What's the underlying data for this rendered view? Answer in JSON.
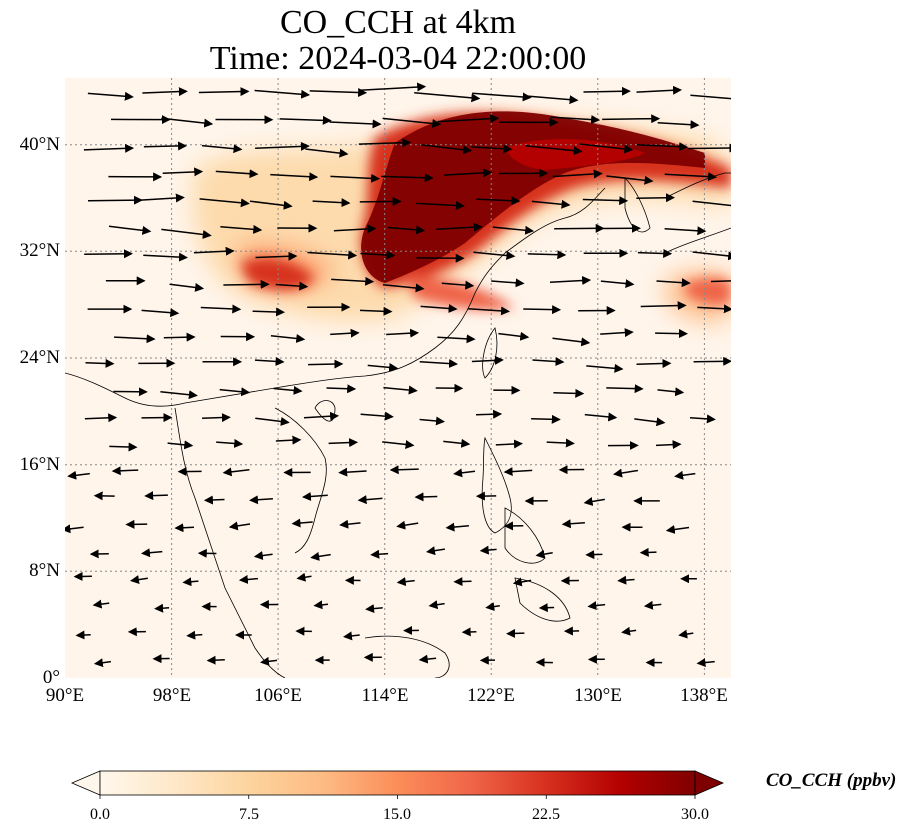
{
  "title": {
    "line1": "CO_CCH at 4km",
    "line2": "Time: 2024-03-04 22:00:00"
  },
  "map": {
    "type": "filled-contour-with-wind-vectors",
    "extent_lon": [
      90,
      140
    ],
    "extent_lat": [
      0,
      45
    ],
    "grid": "dotted",
    "lon_ticks": [
      "90°E",
      "98°E",
      "106°E",
      "114°E",
      "122°E",
      "130°E",
      "138°E"
    ],
    "lat_ticks": [
      "0°",
      "8°N",
      "16°N",
      "24°N",
      "32°N",
      "40°N"
    ],
    "background_color": "#fff5eb",
    "coastline_color": "#000000",
    "vector_color": "#000000"
  },
  "colorbar": {
    "label": "CO_CCH (ppbv)",
    "range": [
      0,
      30
    ],
    "extend": "both",
    "ticks": [
      "0.0",
      "7.5",
      "15.0",
      "22.5",
      "30.0"
    ],
    "colormap": "OrRd",
    "colors": [
      "#fff7ec",
      "#fee8c8",
      "#fdd49e",
      "#fdbb84",
      "#fc8d59",
      "#ef6548",
      "#d7301f",
      "#b30000",
      "#7f0000"
    ]
  }
}
